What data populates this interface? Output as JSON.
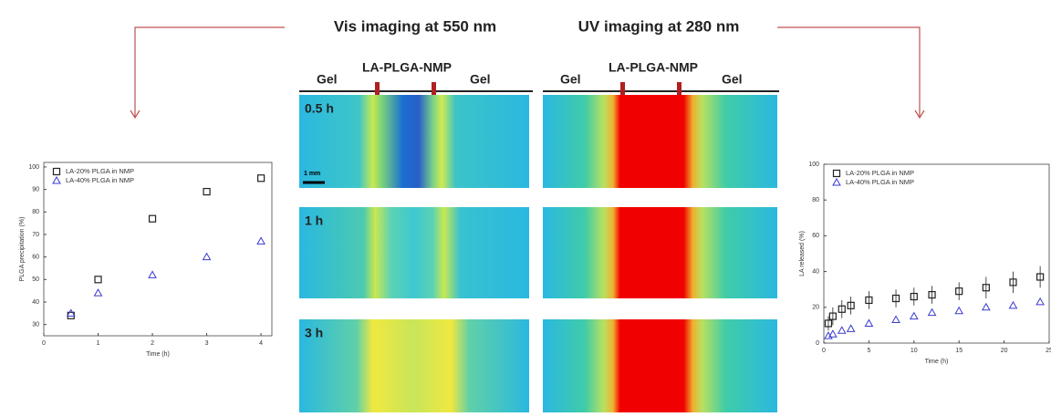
{
  "chart_data": [
    {
      "type": "scatter",
      "xlabel": "Time (h)",
      "ylabel": "PLGA precipitation (%)",
      "xlim": [
        0,
        4.2
      ],
      "xticks": [
        0,
        1,
        2,
        3,
        4
      ],
      "ylim": [
        25,
        102
      ],
      "yticks": [
        30,
        40,
        50,
        60,
        70,
        80,
        90,
        100
      ],
      "legend": "upper left",
      "series": [
        {
          "name": "LA-20% PLGA in NMP",
          "color": "#222222",
          "marker": "square",
          "x": [
            0.5,
            1,
            2,
            3,
            4
          ],
          "values": [
            34,
            50,
            77,
            89,
            95
          ]
        },
        {
          "name": "LA-40% PLGA in NMP",
          "color": "#3a3ad0",
          "marker": "triangle",
          "x": [
            0.5,
            1,
            2,
            3,
            4
          ],
          "values": [
            35,
            44,
            52,
            60,
            67
          ]
        }
      ]
    },
    {
      "type": "scatter",
      "xlabel": "Time (h)",
      "ylabel": "LA released (%)",
      "xlim": [
        0,
        25
      ],
      "xticks": [
        0,
        5,
        10,
        15,
        20,
        25
      ],
      "ylim": [
        0,
        100
      ],
      "yticks": [
        0,
        20,
        40,
        60,
        80,
        100
      ],
      "legend": "upper left",
      "series": [
        {
          "name": "LA-20% PLGA in NMP",
          "color": "#222222",
          "marker": "square",
          "x": [
            0.5,
            1,
            2,
            3,
            5,
            8,
            10,
            12,
            15,
            18,
            21,
            24
          ],
          "values": [
            11,
            15,
            19,
            21,
            24,
            25,
            26,
            27,
            29,
            31,
            34,
            37
          ],
          "errors": [
            4,
            5,
            5,
            5,
            5,
            5,
            5,
            5,
            5,
            6,
            6,
            6
          ]
        },
        {
          "name": "LA-40% PLGA in NMP",
          "color": "#3a3ad0",
          "marker": "triangle",
          "x": [
            0.5,
            1,
            2,
            3,
            5,
            8,
            10,
            12,
            15,
            18,
            21,
            24
          ],
          "values": [
            4,
            5,
            7,
            8,
            11,
            13,
            15,
            17,
            18,
            20,
            21,
            23
          ]
        }
      ]
    }
  ],
  "panels": {
    "vis": {
      "title": "Vis imaging at 550 nm",
      "left": "Gel",
      "center": "LA-PLGA-NMP",
      "right": "Gel",
      "scale": "1 mm"
    },
    "uv": {
      "title": "UV imaging at 280 nm",
      "left": "Gel",
      "center": "LA-PLGA-NMP",
      "right": "Gel"
    },
    "times": [
      "0.5 h",
      "1 h",
      "3 h"
    ]
  }
}
